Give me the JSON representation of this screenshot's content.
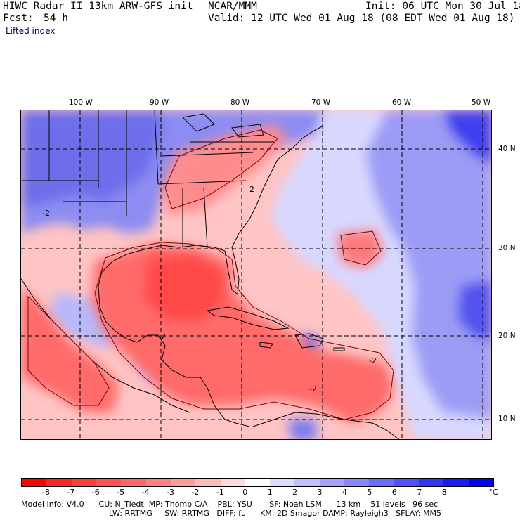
{
  "header": {
    "title": "HIWC Radar II 13km ARW-GFS init",
    "center": "NCAR/MMM",
    "init": "Init: 06 UTC Mon 30 Jul 18",
    "fcst_label": "Fcst:",
    "fcst_value": "54 h",
    "valid": "Valid: 12 UTC Wed 01 Aug 18 (08 EDT Wed 01 Aug 18)",
    "field": "Lifted index"
  },
  "map": {
    "lon_labels": [
      "100 W",
      "90 W",
      "80 W",
      "70 W",
      "60 W",
      "50 W"
    ],
    "lat_labels": [
      "40 N",
      "30 N",
      "20 N",
      "10 N"
    ],
    "contour_labels": [
      "-2",
      "-2",
      "2",
      "-2",
      "-2"
    ]
  },
  "colorbar": {
    "labels": [
      "-8",
      "-7",
      "-6",
      "-5",
      "-4",
      "-3",
      "-2",
      "-1",
      "0",
      "1",
      "2",
      "3",
      "4",
      "5",
      "6",
      "7",
      "8"
    ],
    "unit": "°C",
    "colors": [
      "#ff0000",
      "#ff2222",
      "#ff3c3c",
      "#ff5252",
      "#ff6868",
      "#ff8080",
      "#ff9c9c",
      "#ffbaba",
      "#ffdada",
      "#ffffff",
      "#dcdcff",
      "#c0c0ff",
      "#a4a4ff",
      "#8888ff",
      "#6c6cff",
      "#5050ff",
      "#3434ff",
      "#1a1aff",
      "#0000ff"
    ]
  },
  "footer": {
    "line1": "Model Info: V4.0      CU: N_Tiedt  MP: Thomp C/A    PBL: YSU       SF: Noah LSM      13 km    51 levels   96 sec",
    "line2": "LW: RRTMG     SW: RRTMG   DIFF: full    KM: 2D Smagor DAMP: Rayleigh3   SFLAY: MM5"
  }
}
